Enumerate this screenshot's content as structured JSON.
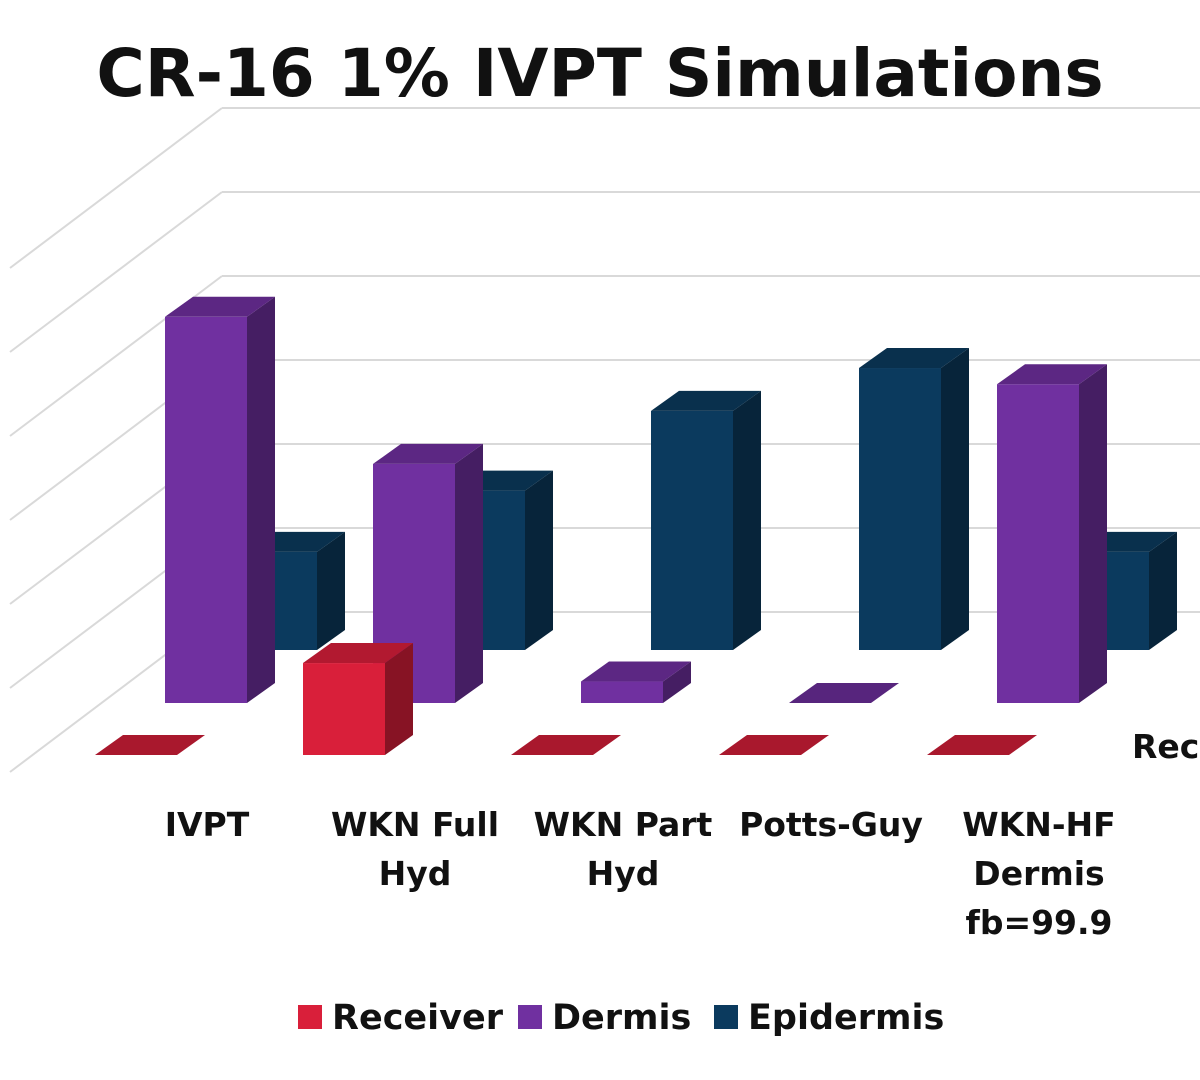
{
  "chart_data": {
    "type": "bar",
    "title": "CR-16 1% IVPT Simulations",
    "categories": [
      "IVPT",
      "WKN Full Hyd",
      "WKN Part Hyd",
      "Potts-Guy",
      "WKN-HF Dermis fb=99.9"
    ],
    "category_lines": [
      [
        "IVPT"
      ],
      [
        "WKN Full",
        "Hyd"
      ],
      [
        "WKN Part",
        "Hyd"
      ],
      [
        "Potts-Guy"
      ],
      [
        "WKN-HF",
        "Dermis",
        "fb=99.9"
      ]
    ],
    "depth_label": "Rece",
    "series": [
      {
        "name": "Receiver",
        "color": "#d91f3a",
        "values": [
          0,
          1.5,
          0,
          0,
          0
        ]
      },
      {
        "name": "Dermis",
        "color": "#7030a0",
        "values": [
          6.3,
          3.9,
          0.35,
          0,
          5.2
        ]
      },
      {
        "name": "Epidermis",
        "color": "#0b3a5e",
        "values": [
          1.6,
          2.6,
          3.9,
          4.6,
          1.6
        ]
      }
    ],
    "ylim": [
      0,
      7
    ],
    "grid": true,
    "legend": "bottom"
  }
}
